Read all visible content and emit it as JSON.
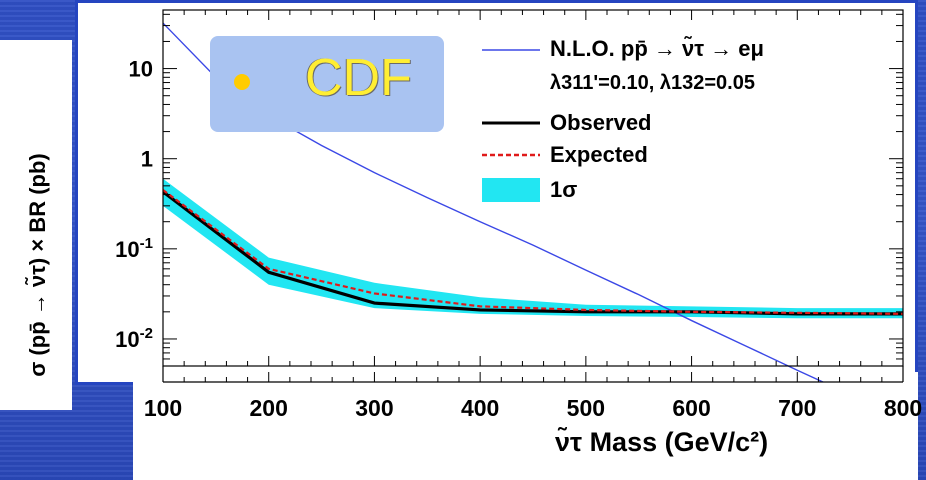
{
  "chart_data": {
    "type": "line",
    "title": "",
    "xlabel": "ν̃τ Mass (GeV/c²)",
    "ylabel": "σ (pp̄ → ν̃τ) × BR (pb)",
    "xlim": [
      100,
      800
    ],
    "ylim_log10": [
      -2.3,
      1.65
    ],
    "y_scale": "log",
    "x_ticks": [
      100,
      200,
      300,
      400,
      500,
      600,
      700,
      800
    ],
    "x_tick_labels": [
      "100",
      "200",
      "300",
      "400",
      "500",
      "600",
      "700",
      "800"
    ],
    "y_ticks": [
      10,
      1,
      0.1,
      0.01
    ],
    "y_tick_labels": [
      {
        "base": "10",
        "exp": ""
      },
      {
        "base": "1",
        "exp": ""
      },
      {
        "base": "10",
        "exp": "-1"
      },
      {
        "base": "10",
        "exp": "-2"
      }
    ],
    "legend_position": "top-right",
    "series": [
      {
        "name": "N.L.O. pp̄ → ν̃τ → eμ",
        "name_line2": "λ311'=0.10, λ132=0.05",
        "style": "line",
        "color": "#3b48e6",
        "x": [
          100,
          150,
          200,
          250,
          300,
          350,
          400,
          450,
          500,
          550,
          600,
          650,
          700,
          800
        ],
        "y": [
          32,
          8,
          3,
          1.4,
          0.7,
          0.37,
          0.2,
          0.11,
          0.058,
          0.031,
          0.016,
          0.0085,
          0.0045,
          0.0013
        ]
      },
      {
        "name": "Observed",
        "style": "line",
        "color": "#000000",
        "x": [
          100,
          200,
          300,
          400,
          500,
          600,
          700,
          800
        ],
        "y": [
          0.43,
          0.055,
          0.025,
          0.021,
          0.02,
          0.02,
          0.019,
          0.019
        ]
      },
      {
        "name": "Expected",
        "style": "dashed",
        "color": "#e01a1a",
        "x": [
          100,
          200,
          300,
          400,
          500,
          600,
          700,
          800
        ],
        "y": [
          0.45,
          0.06,
          0.032,
          0.023,
          0.021,
          0.02,
          0.0195,
          0.019
        ]
      },
      {
        "name": "1σ",
        "style": "band",
        "color": "#22e6f2",
        "x": [
          100,
          200,
          300,
          400,
          500,
          600,
          700,
          800
        ],
        "y_low": [
          0.3,
          0.04,
          0.022,
          0.019,
          0.018,
          0.0175,
          0.017,
          0.017
        ],
        "y_high": [
          0.6,
          0.08,
          0.042,
          0.029,
          0.024,
          0.023,
          0.022,
          0.022
        ]
      }
    ],
    "annotation": "CDF"
  }
}
